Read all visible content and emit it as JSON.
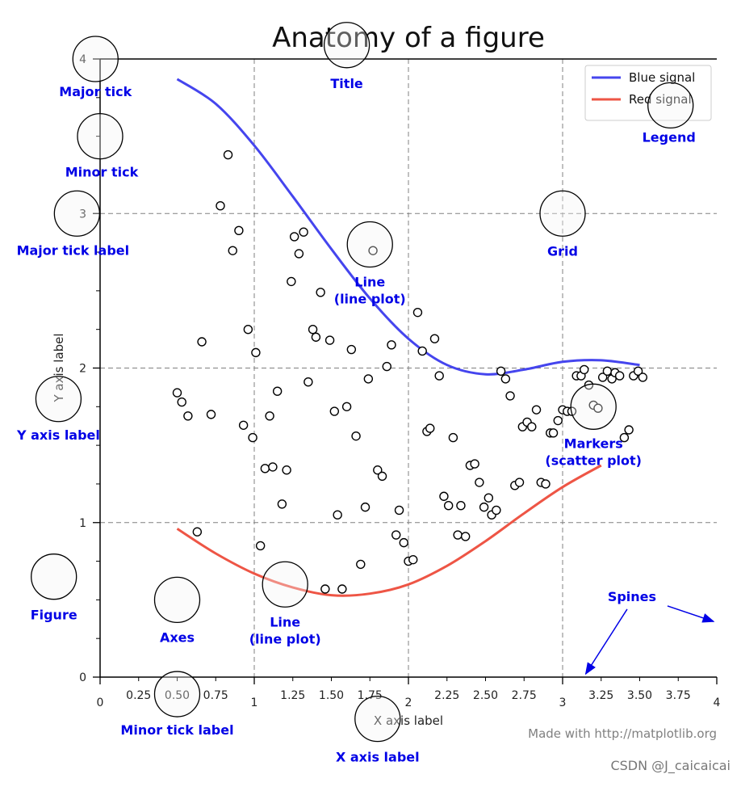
{
  "chart_data": {
    "type": "line",
    "title": "Anatomy of a figure",
    "xlabel": "X axis label",
    "ylabel": "Y axis label",
    "xlim": [
      0,
      4
    ],
    "ylim": [
      0,
      4
    ],
    "grid": true,
    "legend_position": "top-right",
    "x_major_ticks": [
      0,
      1,
      2,
      3,
      4
    ],
    "x_major_tick_labels": [
      "0",
      "1",
      "2",
      "3",
      "4"
    ],
    "x_minor_ticks": [
      0.25,
      0.5,
      0.75,
      1.25,
      1.5,
      1.75,
      2.25,
      2.5,
      2.75,
      3.25,
      3.5,
      3.75
    ],
    "x_minor_tick_labels": [
      "0.25",
      "0.50",
      "0.75",
      "1.25",
      "1.50",
      "1.75",
      "2.25",
      "2.50",
      "2.75",
      "3.25",
      "3.50",
      "3.75"
    ],
    "y_major_ticks": [
      0,
      1,
      2,
      3,
      4
    ],
    "y_major_tick_labels": [
      "0",
      "1",
      "2",
      "3",
      "4"
    ],
    "y_minor_ticks": [
      0.25,
      0.5,
      0.75,
      1.25,
      1.5,
      1.75,
      2.25,
      2.5,
      2.75,
      3.25,
      3.5,
      3.75
    ],
    "series": [
      {
        "name": "Blue signal",
        "type": "line",
        "color": "#4545ee",
        "x": [
          0.5,
          0.75,
          1.0,
          1.25,
          1.5,
          1.75,
          2.0,
          2.25,
          2.5,
          2.75,
          3.0,
          3.25,
          3.5
        ],
        "y": [
          3.87,
          3.71,
          3.44,
          3.11,
          2.77,
          2.45,
          2.19,
          2.02,
          1.96,
          1.99,
          2.04,
          2.05,
          2.02
        ]
      },
      {
        "name": "Red signal",
        "type": "line",
        "color": "#ee5545",
        "x": [
          0.5,
          0.75,
          1.0,
          1.25,
          1.5,
          1.75,
          2.0,
          2.25,
          2.5,
          2.75,
          3.0,
          3.25
        ],
        "y": [
          0.96,
          0.8,
          0.67,
          0.58,
          0.53,
          0.54,
          0.6,
          0.72,
          0.88,
          1.06,
          1.23,
          1.37
        ]
      },
      {
        "name": "",
        "type": "scatter",
        "color": "#000000",
        "x": [
          0.5,
          0.53,
          0.57,
          0.63,
          0.66,
          0.72,
          0.78,
          0.83,
          0.86,
          0.9,
          0.93,
          0.96,
          0.99,
          1.01,
          1.04,
          1.07,
          1.1,
          1.12,
          1.15,
          1.18,
          1.21,
          1.24,
          1.26,
          1.29,
          1.32,
          1.35,
          1.38,
          1.4,
          1.43,
          1.46,
          1.49,
          1.52,
          1.54,
          1.57,
          1.6,
          1.63,
          1.66,
          1.69,
          1.72,
          1.74,
          1.77,
          1.8,
          1.83,
          1.86,
          1.89,
          1.92,
          1.94,
          1.97,
          2.0,
          2.03,
          2.06,
          2.09,
          2.12,
          2.14,
          2.17,
          2.2,
          2.23,
          2.26,
          2.29,
          2.32,
          2.34,
          2.37,
          2.4,
          2.43,
          2.46,
          2.49,
          2.52,
          2.54,
          2.57,
          2.6,
          2.63,
          2.66,
          2.69,
          2.72,
          2.74,
          2.77,
          2.8,
          2.83,
          2.86,
          2.89,
          2.92,
          2.94,
          2.97,
          3.0,
          3.03,
          3.06,
          3.09,
          3.12,
          3.14,
          3.17,
          3.2,
          3.23,
          3.26,
          3.29,
          3.32,
          3.34,
          3.37,
          3.4,
          3.43,
          3.46,
          3.49,
          3.52
        ],
        "y": [
          1.84,
          1.78,
          1.69,
          0.94,
          2.17,
          1.7,
          3.05,
          3.38,
          2.76,
          2.89,
          1.63,
          2.25,
          1.55,
          2.1,
          0.85,
          1.35,
          1.69,
          1.36,
          1.85,
          1.12,
          1.34,
          2.56,
          2.85,
          2.74,
          2.88,
          1.91,
          2.25,
          2.2,
          2.49,
          0.57,
          2.18,
          1.72,
          1.05,
          0.57,
          1.75,
          2.12,
          1.56,
          0.73,
          1.1,
          1.93,
          2.76,
          1.34,
          1.3,
          2.01,
          2.15,
          0.92,
          1.08,
          0.87,
          0.75,
          0.76,
          2.36,
          2.11,
          1.59,
          1.61,
          2.19,
          1.95,
          1.17,
          1.11,
          1.55,
          0.92,
          1.11,
          0.91,
          1.37,
          1.38,
          1.26,
          1.1,
          1.16,
          1.05,
          1.08,
          1.98,
          1.93,
          1.82,
          1.24,
          1.26,
          1.62,
          1.65,
          1.62,
          1.73,
          1.26,
          1.25,
          1.58,
          1.58,
          1.66,
          1.73,
          1.72,
          1.72,
          1.95,
          1.95,
          1.99,
          1.89,
          1.76,
          1.74,
          1.94,
          1.98,
          1.93,
          1.97,
          1.95,
          1.55,
          1.6,
          1.95,
          1.98,
          1.94
        ]
      }
    ],
    "annotations": [
      {
        "text": "Major tick",
        "x": -0.03,
        "y": 4.0
      },
      {
        "text": "Minor tick",
        "x": 0.0,
        "y": 3.5
      },
      {
        "text": "Major tick label",
        "x": -0.15,
        "y": 3.0
      },
      {
        "text": "Y axis label",
        "x": -0.27,
        "y": 1.8
      },
      {
        "text": "Title",
        "x": 1.6,
        "y": 4.09
      },
      {
        "text": "Legend",
        "x": 3.7,
        "y": 3.7
      },
      {
        "text": "Line\n(line plot)",
        "x": 1.75,
        "y": 2.8
      },
      {
        "text": "Grid",
        "x": 3.0,
        "y": 3.0
      },
      {
        "text": "Markers\n(scatter plot)",
        "x": 3.2,
        "y": 1.75
      },
      {
        "text": "Line\n(line plot)",
        "x": 1.2,
        "y": 0.6
      },
      {
        "text": "Axes",
        "x": 0.5,
        "y": 0.5
      },
      {
        "text": "Figure",
        "x": -0.3,
        "y": 0.65
      },
      {
        "text": "Spines",
        "x": 3.45,
        "y": 0.45
      },
      {
        "text": "Minor tick label",
        "x": 0.5,
        "y": -0.11
      },
      {
        "text": "X axis label",
        "x": 1.8,
        "y": -0.27
      }
    ],
    "footer_text": "Made with http://matplotlib.org"
  },
  "watermark": "CSDN @J_caicaicai",
  "colors": {
    "annotation": "#0000e6",
    "circle_fill": "#f4f4f4",
    "grid": "#808080",
    "blue_line": "#4545ee",
    "red_line": "#ee5545",
    "footer": "#808080"
  }
}
